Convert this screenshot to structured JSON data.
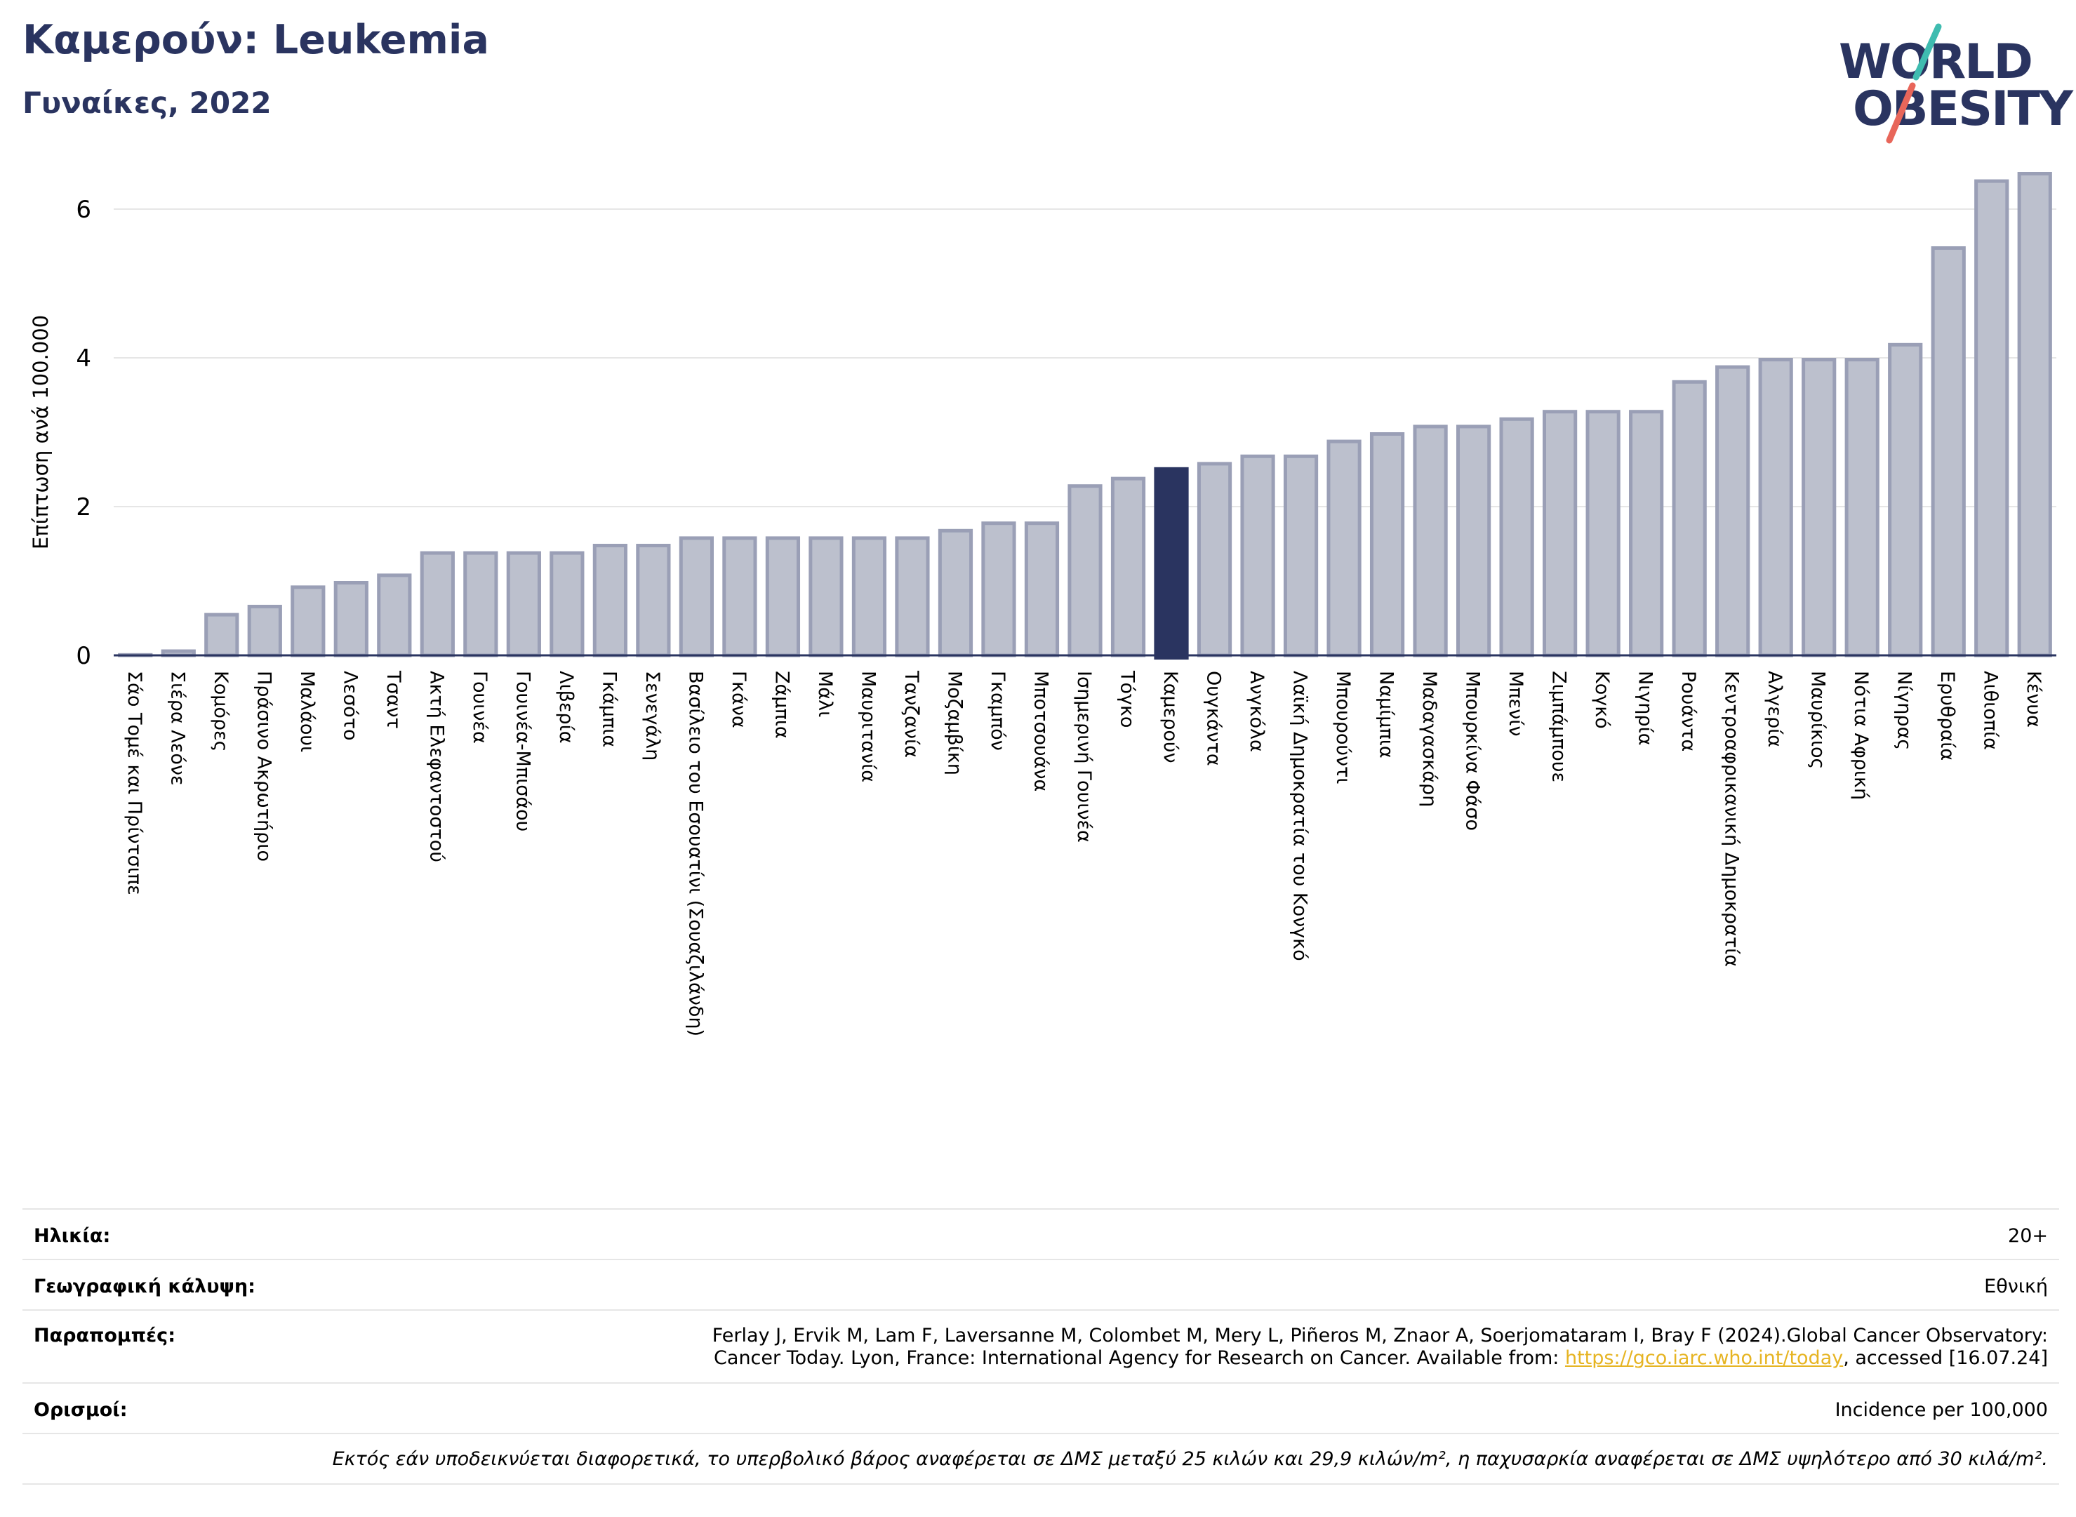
{
  "header": {
    "title": "Καμερούν: Leukemia",
    "subtitle": "Γυναίκες, 2022"
  },
  "logo": {
    "line1": "WORLD",
    "line2": "OBESITY",
    "accent_colors": [
      "#3fbcb0",
      "#e8665a"
    ]
  },
  "chart_data": {
    "type": "bar",
    "ylabel": "Επίπτωση ανά 100.000",
    "xlabel": "",
    "ylim": [
      0,
      6.6
    ],
    "yticks": [
      0,
      2,
      4,
      6
    ],
    "grid": true,
    "highlight": "Καμερούν",
    "bar_color": "#bcc0cd",
    "bar_edge_color": "#9a9fb6",
    "highlight_color": "#2a3460",
    "categories": [
      "Σάο Τομέ και Πρίντσιπε",
      "Σιέρα Λεόνε",
      "Κομόρες",
      "Πράσινο Ακρωτήριο",
      "Μαλάουι",
      "Λεσότο",
      "Τσαντ",
      "Ακτή Ελεφαντοστού",
      "Γουινέα",
      "Γουινέα-Μπισάου",
      "Λιβερία",
      "Γκάμπια",
      "Σενεγάλη",
      "Βασίλειο του Εσουατίνι (Σουαζιλάνδη)",
      "Γκάνα",
      "Ζάμπια",
      "Μάλι",
      "Μαυριτανία",
      "Τανζανία",
      "Μοζαμβίκη",
      "Γκαμπόν",
      "Μποτσουάνα",
      "Ισημερινή Γουινέα",
      "Τόγκο",
      "Καμερούν",
      "Ουγκάντα",
      "Ανγκόλα",
      "Λαϊκή Δημοκρατία του Κονγκό",
      "Μπουρούντι",
      "Ναμίμπια",
      "Μαδαγασκάρη",
      "Μπουρκίνα Φάσο",
      "Μπενίν",
      "Ζιμπάμπουε",
      "Κογκό",
      "Νιγηρία",
      "Ρουάντα",
      "Κεντροαφρικανική Δημοκρατία",
      "Αλγερία",
      "Μαυρίκιος",
      "Νότια Αφρική",
      "Νίγηρας",
      "Ερυθραία",
      "Αιθιοπία",
      "Κένυα"
    ],
    "values": [
      0.03,
      0.08,
      0.57,
      0.68,
      0.94,
      1.0,
      1.1,
      1.4,
      1.4,
      1.4,
      1.4,
      1.5,
      1.5,
      1.6,
      1.6,
      1.6,
      1.6,
      1.6,
      1.6,
      1.7,
      1.8,
      1.8,
      2.3,
      2.4,
      2.53,
      2.6,
      2.7,
      2.7,
      2.9,
      3.0,
      3.1,
      3.1,
      3.2,
      3.3,
      3.3,
      3.3,
      3.7,
      3.9,
      4.0,
      4.0,
      4.0,
      4.2,
      5.5,
      6.4,
      6.5
    ]
  },
  "info": {
    "age_label": "Ηλικία:",
    "age_value": "20+",
    "coverage_label": "Γεωγραφική κάλυψη:",
    "coverage_value": "Εθνική",
    "refs_label": "Παραπομπές:",
    "refs_line1": "Ferlay J, Ervik M, Lam F, Laversanne M, Colombet M, Mery L, Piñeros M, Znaor A, Soerjomataram I, Bray F (2024).Global Cancer Observatory:",
    "refs_line2_pre": "Cancer Today. Lyon, France: International Agency for Research on Cancer. Available from: ",
    "refs_link": "https://gco.iarc.who.int/today",
    "refs_line2_post": ", accessed [16.07.24]",
    "defs_label": "Ορισμοί:",
    "defs_value": "Incidence per 100,000",
    "note": "Εκτός εάν υποδεικνύεται διαφορετικά, το υπερβολικό βάρος αναφέρεται σε ΔΜΣ μεταξύ 25 κιλών και 29,9 κιλών/m², η παχυσαρκία αναφέρεται σε ΔΜΣ υψηλότερο από 30 κιλά/m²."
  }
}
